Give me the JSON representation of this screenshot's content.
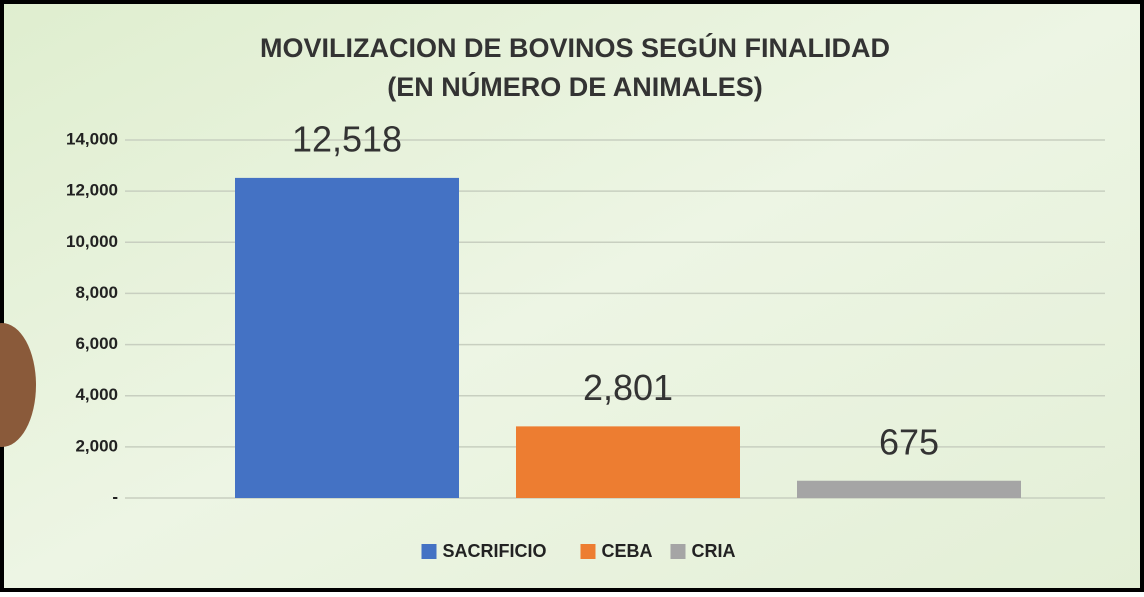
{
  "chart_data": {
    "type": "bar",
    "title": "MOVILIZACION DE BOVINOS SEGÚN FINALIDAD",
    "subtitle": "(EN NÚMERO DE ANIMALES)",
    "categories": [
      null
    ],
    "series": [
      {
        "name": "SACRIFICIO",
        "color": "#4472c4",
        "values": [
          12518
        ],
        "value_labels": [
          "12,518"
        ]
      },
      {
        "name": "CEBA",
        "color": "#ed7d31",
        "values": [
          2801
        ],
        "value_labels": [
          "2,801"
        ]
      },
      {
        "name": "CRIA",
        "color": "#a5a5a5",
        "values": [
          675
        ],
        "value_labels": [
          "675"
        ]
      }
    ],
    "ylim": [
      0,
      14000
    ],
    "yticks": [
      {
        "value": 0,
        "label": "-"
      },
      {
        "value": 2000,
        "label": "2,000"
      },
      {
        "value": 4000,
        "label": "4,000"
      },
      {
        "value": 6000,
        "label": "6,000"
      },
      {
        "value": 8000,
        "label": "8,000"
      },
      {
        "value": 10000,
        "label": "10,000"
      },
      {
        "value": 12000,
        "label": "12,000"
      },
      {
        "value": 14000,
        "label": "14,000"
      }
    ],
    "grid": true,
    "legend": "bottom"
  }
}
